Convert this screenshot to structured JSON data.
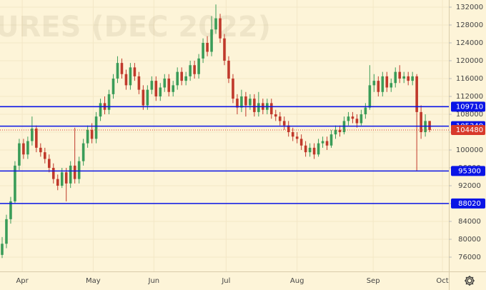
{
  "chart_data": {
    "type": "candlestick",
    "watermark": "URES (DEC 2022)",
    "xlim": [
      -0.5,
      104.5
    ],
    "xticks": [
      {
        "value": 4.7,
        "label": "Apr"
      },
      {
        "value": 21.3,
        "label": "May"
      },
      {
        "value": 35.5,
        "label": "Jun"
      },
      {
        "value": 52.4,
        "label": "Jul"
      },
      {
        "value": 69,
        "label": "Aug"
      },
      {
        "value": 86.8,
        "label": "Sep"
      },
      {
        "value": 103,
        "label": "Oct"
      }
    ],
    "ylim": [
      72800,
      133600
    ],
    "yticks": [
      76000,
      80000,
      84000,
      88000,
      92000,
      96000,
      100000,
      104000,
      108000,
      112000,
      116000,
      120000,
      124000,
      128000,
      132000
    ],
    "grid": true,
    "up_color": "#3a9c58",
    "down_color": "#c0392b",
    "open": [
      76500,
      79000,
      84500,
      88500,
      96500,
      101500,
      99000,
      102000,
      104800,
      100500,
      99500,
      98000,
      96000,
      93500,
      92000,
      95000,
      92500,
      96500,
      93500,
      97500,
      101500,
      104500,
      102500,
      107500,
      110500,
      109000,
      112500,
      116000,
      119500,
      117000,
      114500,
      118500,
      116500,
      113500,
      110000,
      113500,
      115500,
      112000,
      114000,
      116000,
      113000,
      114500,
      117500,
      115500,
      116500,
      119000,
      117000,
      120500,
      124000,
      122000,
      127000,
      129500,
      125000,
      120000,
      116000,
      111500,
      109500,
      112000,
      110000,
      111500,
      108500,
      110500,
      109000,
      110500,
      108000,
      107500,
      106500,
      105500,
      104000,
      103000,
      102500,
      101000,
      99500,
      100500,
      99000,
      101500,
      102000,
      101000,
      103500,
      104500,
      104000,
      106500,
      107500,
      107000,
      106000,
      108000,
      109500,
      114500,
      115500,
      113000,
      116500,
      114000,
      115000,
      117500,
      116000,
      116500,
      115500,
      116500,
      108500,
      104000,
      106500
    ],
    "high": [
      80500,
      85500,
      89500,
      97500,
      102500,
      102500,
      103000,
      107500,
      105500,
      101500,
      100500,
      99000,
      97000,
      94500,
      96000,
      96000,
      97500,
      105000,
      98500,
      102500,
      105500,
      106000,
      108500,
      111500,
      112000,
      113500,
      117000,
      121000,
      120500,
      118000,
      119500,
      119500,
      117500,
      114500,
      114500,
      116500,
      116500,
      115000,
      117000,
      117000,
      115500,
      118500,
      118500,
      117500,
      120000,
      120000,
      121500,
      125000,
      125500,
      130000,
      132600,
      130500,
      126000,
      121000,
      117000,
      112500,
      113500,
      113000,
      112500,
      112500,
      113000,
      111500,
      111500,
      111500,
      109000,
      108500,
      107500,
      106500,
      105000,
      104000,
      103500,
      102000,
      101500,
      101500,
      102500,
      103000,
      103000,
      104500,
      105500,
      105500,
      107500,
      108500,
      108500,
      108000,
      109000,
      110500,
      119000,
      117000,
      116500,
      117500,
      117500,
      116000,
      118500,
      119000,
      117500,
      117500,
      117500,
      117000,
      110000,
      108000,
      106500
    ],
    "low": [
      75800,
      78000,
      83500,
      88000,
      95500,
      98000,
      98000,
      101000,
      99500,
      98500,
      97000,
      95000,
      92500,
      91000,
      91500,
      88500,
      91500,
      92500,
      92500,
      96500,
      100500,
      101500,
      101500,
      106500,
      108000,
      108000,
      111500,
      115000,
      116000,
      113500,
      113500,
      115500,
      112500,
      109000,
      109000,
      112500,
      111000,
      111000,
      113000,
      112000,
      112000,
      113500,
      114500,
      114500,
      115500,
      116000,
      116000,
      119500,
      121000,
      121000,
      126000,
      124000,
      119000,
      115000,
      110500,
      108000,
      108500,
      107500,
      109000,
      107500,
      107500,
      108000,
      108000,
      107000,
      106500,
      105500,
      104500,
      103000,
      102000,
      101500,
      100000,
      98500,
      98500,
      98000,
      98500,
      100500,
      100000,
      100500,
      102500,
      103000,
      103500,
      105500,
      106000,
      105000,
      105500,
      107000,
      109000,
      113000,
      112000,
      112000,
      113000,
      113000,
      114000,
      115000,
      115000,
      114500,
      114500,
      95300,
      102500,
      103000,
      104000
    ],
    "close": [
      79000,
      84500,
      88500,
      96500,
      101500,
      99000,
      102000,
      104800,
      100500,
      99500,
      98000,
      96000,
      93500,
      92000,
      95000,
      92500,
      96500,
      93500,
      97500,
      101500,
      104500,
      102500,
      107500,
      110500,
      109000,
      112500,
      116000,
      119500,
      117000,
      114500,
      118500,
      116500,
      113500,
      110000,
      113500,
      115500,
      112000,
      114000,
      116000,
      113000,
      114500,
      117500,
      115500,
      116500,
      119000,
      117000,
      120500,
      124000,
      122000,
      127000,
      129500,
      125000,
      120000,
      116000,
      111500,
      109500,
      112000,
      110000,
      111500,
      108500,
      110500,
      109000,
      110500,
      108000,
      107500,
      106500,
      105500,
      104000,
      103000,
      102500,
      101000,
      99500,
      100500,
      99000,
      101500,
      102000,
      101000,
      103500,
      104500,
      104000,
      106500,
      107500,
      107000,
      106000,
      108000,
      109500,
      114500,
      115500,
      113000,
      116500,
      114000,
      115000,
      117500,
      116000,
      116500,
      115500,
      116500,
      108500,
      104000,
      106500,
      104480
    ],
    "levels": [
      109710,
      105340,
      95300,
      88020
    ],
    "level_color": "#0a14e6",
    "last_price_color": "#d8392b"
  }
}
